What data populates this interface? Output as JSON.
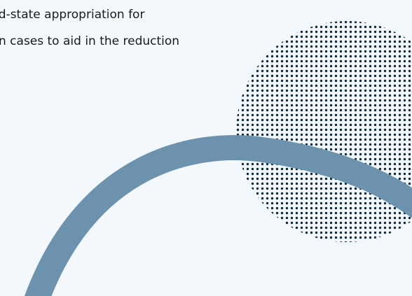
{
  "body_text": {
    "lines": [
      "nd-state appropriation for",
      "n cases to aid in the reduction"
    ]
  },
  "colors": {
    "background": "#f3f8fd",
    "arc": "#6d92ae",
    "dots": "#0e2a3a",
    "text": "#1a1a1a"
  }
}
